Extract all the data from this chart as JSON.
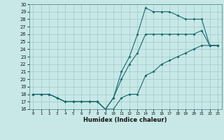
{
  "title": "",
  "xlabel": "Humidex (Indice chaleur)",
  "bg_color": "#c8e8e8",
  "grid_color": "#a0c8c8",
  "line_color": "#1a6b6b",
  "xlim": [
    -0.5,
    23.5
  ],
  "ylim": [
    16,
    30
  ],
  "xticks": [
    0,
    1,
    2,
    3,
    4,
    5,
    6,
    7,
    8,
    9,
    10,
    11,
    12,
    13,
    14,
    15,
    16,
    17,
    18,
    19,
    20,
    21,
    22,
    23
  ],
  "yticks": [
    16,
    17,
    18,
    19,
    20,
    21,
    22,
    23,
    24,
    25,
    26,
    27,
    28,
    29,
    30
  ],
  "line1_x": [
    0,
    1,
    2,
    3,
    4,
    5,
    6,
    7,
    8,
    9,
    10,
    11,
    12,
    13,
    14,
    15,
    16,
    17,
    18,
    19,
    20,
    21,
    22,
    23
  ],
  "line1_y": [
    18,
    18,
    18,
    17.5,
    17,
    17,
    17,
    17,
    17,
    16,
    16,
    17.5,
    18,
    18,
    20.5,
    21,
    22,
    22.5,
    23,
    23.5,
    24,
    24.5,
    24.5,
    24.5
  ],
  "line2_x": [
    0,
    1,
    2,
    3,
    4,
    5,
    6,
    7,
    8,
    9,
    10,
    11,
    12,
    13,
    14,
    15,
    16,
    17,
    18,
    19,
    20,
    21,
    22,
    23
  ],
  "line2_y": [
    18,
    18,
    18,
    17.5,
    17,
    17,
    17,
    17,
    17,
    16,
    17.5,
    21,
    23,
    26,
    29.5,
    29,
    29,
    29,
    28.5,
    28,
    28,
    28,
    24.5,
    24.5
  ],
  "line3_x": [
    0,
    1,
    2,
    3,
    4,
    5,
    6,
    7,
    8,
    9,
    10,
    11,
    12,
    13,
    14,
    15,
    16,
    17,
    18,
    19,
    20,
    21,
    22,
    23
  ],
  "line3_y": [
    18,
    18,
    18,
    17.5,
    17,
    17,
    17,
    17,
    17,
    16,
    17.5,
    20,
    22,
    23.5,
    26,
    26,
    26,
    26,
    26,
    26,
    26,
    26.5,
    24.5,
    24.5
  ]
}
